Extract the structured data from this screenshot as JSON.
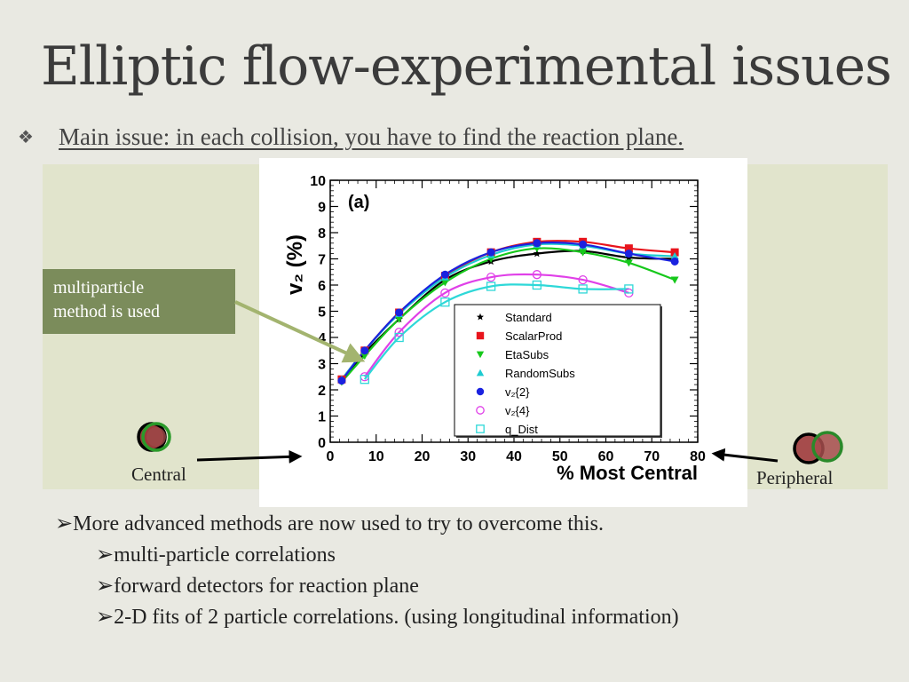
{
  "slide": {
    "title": "Elliptic flow-experimental issues",
    "main_bullet_glyph": "❖",
    "main_issue": "Main issue:  in each collision, you have to find the reaction plane.",
    "callout": [
      "multiparticle",
      "method is used"
    ],
    "central_label": "Central",
    "peripheral_label": "Peripheral",
    "bullets": [
      {
        "text": "More advanced methods are now used to try to overcome this.",
        "level": 0
      },
      {
        "text": "multi-particle correlations",
        "level": 1
      },
      {
        "text": "forward detectors for reaction plane",
        "level": 1
      },
      {
        "text": "2-D fits of 2 particle correlations. (using longitudinal information)",
        "level": 1
      }
    ],
    "bullet_glyph": "➢"
  },
  "chart_data": {
    "type": "scatter",
    "panel_label": "(a)",
    "ylabel": "v₂ (%)",
    "xlabel": "% Most Central",
    "xlim": [
      0,
      80
    ],
    "ylim": [
      0,
      10
    ],
    "xticks": [
      0,
      10,
      20,
      30,
      40,
      50,
      60,
      70,
      80
    ],
    "yticks": [
      0,
      1,
      2,
      3,
      4,
      5,
      6,
      7,
      8,
      9,
      10
    ],
    "grid": false,
    "legend_position": "bottom-right",
    "series": [
      {
        "name": "Standard",
        "marker": "star",
        "color": "#000000",
        "open": false,
        "x": [
          2.5,
          7.5,
          15,
          25,
          35,
          45,
          55,
          65,
          75
        ],
        "y": [
          2.35,
          3.4,
          4.7,
          6.2,
          6.9,
          7.2,
          7.3,
          7.05,
          7.0
        ]
      },
      {
        "name": "ScalarProd",
        "marker": "square",
        "color": "#e8141c",
        "open": false,
        "x": [
          2.5,
          7.5,
          15,
          25,
          35,
          45,
          55,
          65,
          75
        ],
        "y": [
          2.4,
          3.5,
          4.95,
          6.35,
          7.25,
          7.65,
          7.65,
          7.4,
          7.25
        ]
      },
      {
        "name": "EtaSubs",
        "marker": "triangle-down",
        "color": "#16c81b",
        "open": false,
        "x": [
          2.5,
          7.5,
          15,
          25,
          35,
          45,
          55,
          65,
          75
        ],
        "y": [
          2.3,
          3.3,
          4.7,
          6.1,
          7.0,
          7.4,
          7.25,
          6.85,
          6.2
        ]
      },
      {
        "name": "RandomSubs",
        "marker": "triangle-up",
        "color": "#1ecbd1",
        "open": false,
        "x": [
          2.5,
          7.5,
          15,
          25,
          35,
          45,
          55,
          65,
          75
        ],
        "y": [
          2.4,
          3.5,
          4.9,
          6.3,
          7.15,
          7.55,
          7.5,
          7.2,
          7.1
        ]
      },
      {
        "name": "v₂{2}",
        "marker": "circle",
        "color": "#1a22e0",
        "open": false,
        "x": [
          2.5,
          7.5,
          15,
          25,
          35,
          45,
          55,
          65,
          75
        ],
        "y": [
          2.35,
          3.5,
          4.95,
          6.4,
          7.25,
          7.6,
          7.55,
          7.2,
          6.9
        ]
      },
      {
        "name": "v₂{4}",
        "marker": "circle",
        "color": "#e040e8",
        "open": true,
        "x": [
          7.5,
          15,
          25,
          35,
          45,
          55,
          65
        ],
        "y": [
          2.5,
          4.2,
          5.7,
          6.3,
          6.4,
          6.2,
          5.7
        ]
      },
      {
        "name": "q_Dist",
        "marker": "square",
        "color": "#2ed8d8",
        "open": true,
        "x": [
          7.5,
          15,
          25,
          35,
          45,
          55,
          65
        ],
        "y": [
          2.4,
          4.0,
          5.35,
          5.95,
          6.0,
          5.85,
          5.85
        ]
      }
    ]
  }
}
